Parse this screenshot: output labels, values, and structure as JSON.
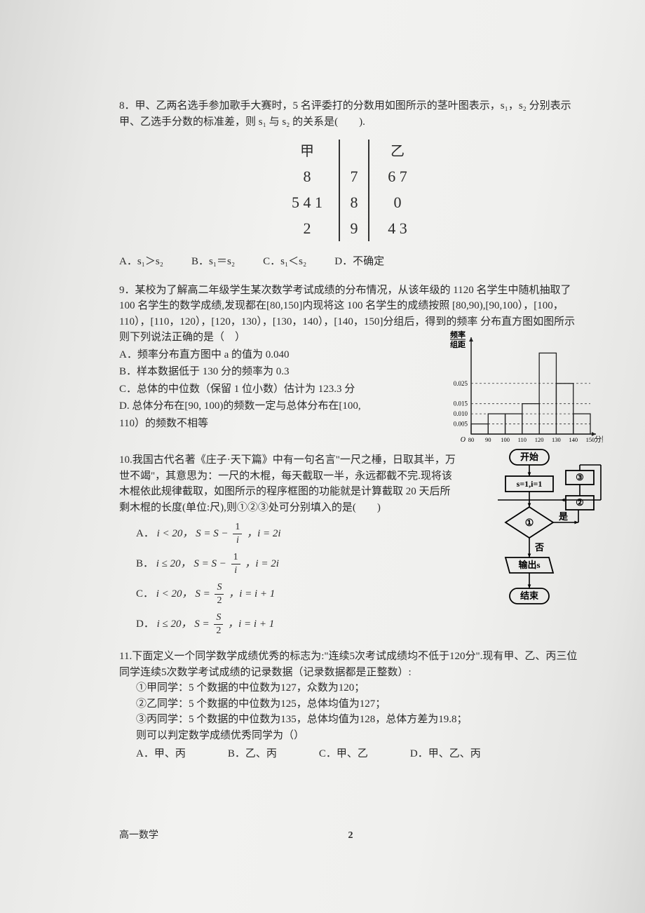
{
  "q8": {
    "stem": "8．甲、乙两名选手参加歌手大赛时，5 名评委打的分数用如图所示的茎叶图表示，s₁，s₂ 分别表示甲、乙选手分数的标准差，则 s₁ 与 s₂ 的关系是(　　).",
    "stemleaf": {
      "head_left": "甲",
      "head_right": "乙",
      "rows": [
        {
          "left": "8",
          "stem": "7",
          "right": "6  7"
        },
        {
          "left": "5  4  1",
          "stem": "8",
          "right": "0"
        },
        {
          "left": "2",
          "stem": "9",
          "right": "4  3"
        }
      ]
    },
    "options": {
      "A": "A．s₁＞s₂",
      "B": "B．s₁＝s₂",
      "C": "C．s₁＜s₂",
      "D": "D．不确定"
    }
  },
  "q9": {
    "stem": "9．某校为了解高二年级学生某次数学考试成绩的分布情况，从该年级的 1120 名学生中随机抽取了 100 名学生的数学成绩,发现都在[80,150]内现将这 100 名学生的成绩按照 [80,90),[90,100），[100，110），[110，120），[120，130），[130，140），[140，150]分组后，得到的频率 分布直方图如图所示则下列说法正确的是（　）",
    "opts": {
      "A": "A．频率分布直方图中 a 的值为 0.040",
      "B": "B．样本数据低于 130 分的频率为 0.3",
      "C": "C．总体的中位数（保留 1 位小数）估计为 123.3 分",
      "D": "D. 总体分布在[90, 100)的频数一定与总体分布在[100,",
      "D2": "110）的频数不相等"
    },
    "histogram": {
      "ylabel_top": "频率",
      "ylabel_bot": "组距",
      "yticks": [
        0.005,
        0.01,
        0.015,
        0.025
      ],
      "xticks": [
        80,
        90,
        100,
        110,
        120,
        130,
        140,
        150
      ],
      "xlabel": "分数",
      "bars": [
        {
          "x": 80,
          "h": 0.005
        },
        {
          "x": 90,
          "h": 0.01
        },
        {
          "x": 100,
          "h": 0.01
        },
        {
          "x": 110,
          "h": 0.015
        },
        {
          "x": 120,
          "h": 0.04
        },
        {
          "x": 130,
          "h": 0.025
        },
        {
          "x": 140,
          "h": 0.01
        }
      ],
      "ymax": 0.045,
      "axis_color": "#222",
      "dash_color": "#333"
    }
  },
  "q10": {
    "stem": "10.我国古代名著《庄子·天下篇》中有一句名言\"一尺之棰，日取其半，万世不竭\"，其意思为：一尺的木棍，每天截取一半，永远都截不完.现将该木棍依此规律截取，如图所示的程序框图的功能就是计算截取 20 天后所剩木棍的长度(单位:尺),则①②③处可分别填入的是(　　)",
    "flow": {
      "start": "开始",
      "init": "s=1,i=1",
      "circ1": "①",
      "circ2": "②",
      "circ3": "③",
      "yes": "是",
      "no": "否",
      "out": "输出s",
      "end": "结束"
    },
    "options": {
      "A_pre": "A．",
      "A_cond": "i < 20，",
      "A_s": "S = S − ",
      "A_frac_num": "1",
      "A_frac_den": "i",
      "A_tail": "，i = 2i",
      "B_pre": "B．",
      "B_cond": "i ≤ 20，",
      "B_s": "S = S − ",
      "B_frac_num": "1",
      "B_frac_den": "i",
      "B_tail": "，i = 2i",
      "C_pre": "C．",
      "C_cond": "i < 20，",
      "C_s": "S = ",
      "C_frac_num": "S",
      "C_frac_den": "2",
      "C_tail": "，i = i + 1",
      "D_pre": "D．",
      "D_cond": "i ≤ 20，",
      "D_s": "S = ",
      "D_frac_num": "S",
      "D_frac_den": "2",
      "D_tail": "，i = i + 1"
    }
  },
  "q11": {
    "stem": "11.下面定义一个同学数学成绩优秀的标志为:\"连续5次考试成绩均不低于120分\".现有甲、乙、丙三位同学连续5次数学考试成绩的记录数据（记录数据都是正整数）:",
    "items": {
      "i1": "①甲同学：5 个数据的中位数为127，众数为120；",
      "i2": "②乙同学：5 个数据的中位数为125，总体均值为127；",
      "i3": "③丙同学：5 个数据的中位数为135，总体均值为128，总体方差为19.8；",
      "ask": "则可以判定数学成绩优秀同学为（）"
    },
    "options": {
      "A": "A．甲、丙",
      "B": "B．乙、丙",
      "C": "C．甲、乙",
      "D": "D．甲、乙、丙"
    }
  },
  "footer": {
    "subject": "高一数学",
    "page": "2"
  }
}
